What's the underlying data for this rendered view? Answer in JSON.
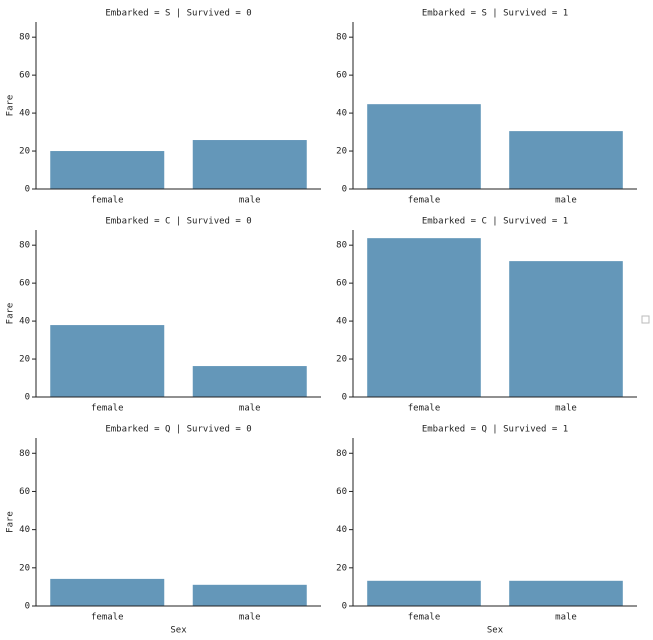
{
  "chart_data": [
    {
      "type": "bar",
      "title": "Embarked = S | Survived = 0",
      "categories": [
        "female",
        "male"
      ],
      "values": [
        20.0,
        25.8
      ],
      "color": "#6497b9",
      "ylim": [
        0,
        88
      ],
      "yticks": [
        0,
        20,
        40,
        60,
        80
      ],
      "ylabel": "Fare"
    },
    {
      "type": "bar",
      "title": "Embarked = S | Survived = 1",
      "categories": [
        "female",
        "male"
      ],
      "values": [
        44.7,
        30.5
      ],
      "color": "#6497b9",
      "ylim": [
        0,
        88
      ],
      "yticks": [
        0,
        20,
        40,
        60,
        80
      ]
    },
    {
      "type": "bar",
      "title": "Embarked = C | Survived = 0",
      "categories": [
        "female",
        "male"
      ],
      "values": [
        37.9,
        16.3
      ],
      "color": "#6497b9",
      "ylim": [
        0,
        88
      ],
      "yticks": [
        0,
        20,
        40,
        60,
        80
      ],
      "ylabel": "Fare"
    },
    {
      "type": "bar",
      "title": "Embarked = C | Survived = 1",
      "categories": [
        "female",
        "male"
      ],
      "values": [
        83.7,
        71.6
      ],
      "color": "#6497b9",
      "ylim": [
        0,
        88
      ],
      "yticks": [
        0,
        20,
        40,
        60,
        80
      ]
    },
    {
      "type": "bar",
      "title": "Embarked = Q | Survived = 0",
      "categories": [
        "female",
        "male"
      ],
      "values": [
        14.2,
        11.1
      ],
      "color": "#6497b9",
      "ylim": [
        0,
        88
      ],
      "yticks": [
        0,
        20,
        40,
        60,
        80
      ],
      "ylabel": "Fare",
      "xlabel": "Sex"
    },
    {
      "type": "bar",
      "title": "Embarked = Q | Survived = 1",
      "categories": [
        "female",
        "male"
      ],
      "values": [
        13.2,
        13.2
      ],
      "color": "#6497b9",
      "ylim": [
        0,
        88
      ],
      "yticks": [
        0,
        20,
        40,
        60,
        80
      ],
      "xlabel": "Sex"
    }
  ]
}
